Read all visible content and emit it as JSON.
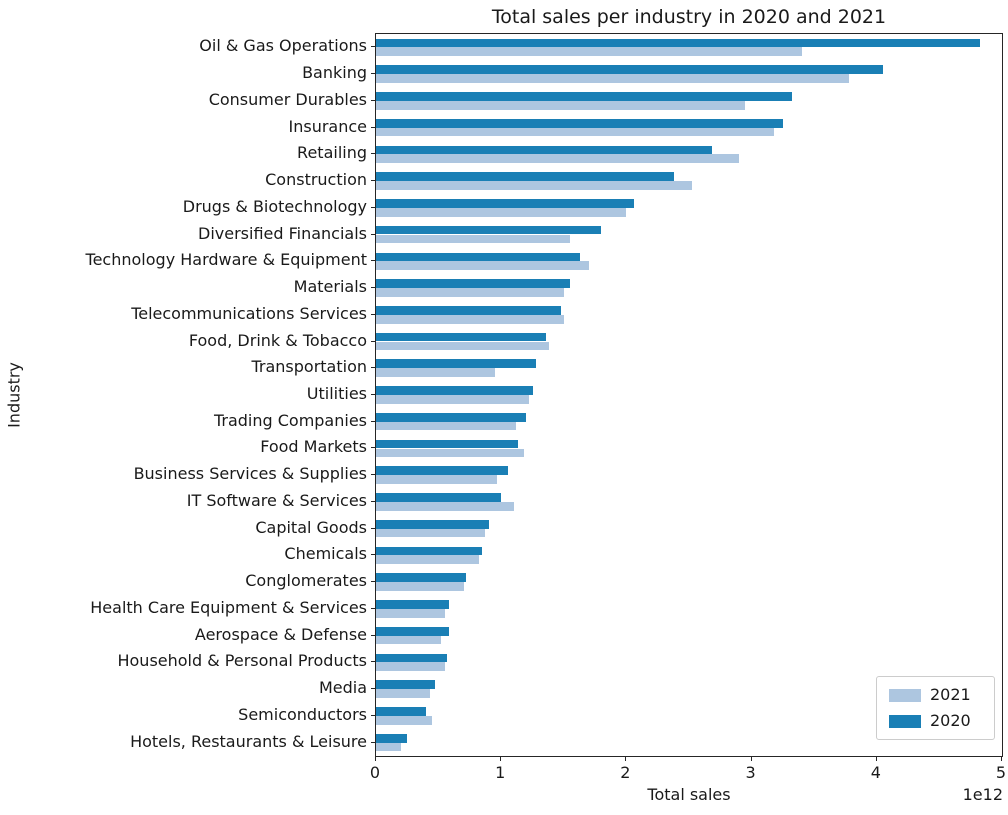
{
  "chart_data": {
    "type": "bar",
    "orientation": "horizontal",
    "title": "Total sales per industry in 2020 and 2021",
    "xlabel": "Total sales",
    "ylabel": "Industry",
    "x_offset_text": "1e12",
    "value_scale": 1000000000000,
    "xlim": [
      0,
      5
    ],
    "x_ticks": [
      0,
      1,
      2,
      3,
      4,
      5
    ],
    "grid": false,
    "legend_position": "lower right",
    "categories": [
      "Oil & Gas Operations",
      "Banking",
      "Consumer Durables",
      "Insurance",
      "Retailing",
      "Construction",
      "Drugs & Biotechnology",
      "Diversified Financials",
      "Technology Hardware & Equipment",
      "Materials",
      "Telecommunications Services",
      "Food, Drink & Tobacco",
      "Transportation",
      "Utilities",
      "Trading Companies",
      "Food Markets",
      "Business Services & Supplies",
      "IT Software & Services",
      "Capital Goods",
      "Chemicals",
      "Conglomerates",
      "Health Care Equipment & Services",
      "Aerospace & Defense",
      "Household & Personal Products",
      "Media",
      "Semiconductors",
      "Hotels, Restaurants & Leisure"
    ],
    "series": [
      {
        "name": "2021",
        "color": "#adc6e0",
        "values": [
          3.4,
          3.78,
          2.95,
          3.18,
          2.9,
          2.52,
          2.0,
          1.55,
          1.7,
          1.5,
          1.5,
          1.38,
          0.95,
          1.22,
          1.12,
          1.18,
          0.97,
          1.1,
          0.87,
          0.82,
          0.7,
          0.55,
          0.52,
          0.55,
          0.43,
          0.45,
          0.2
        ]
      },
      {
        "name": "2020",
        "color": "#1a7fb5",
        "values": [
          4.82,
          4.05,
          3.32,
          3.25,
          2.68,
          2.38,
          2.06,
          1.8,
          1.63,
          1.55,
          1.48,
          1.36,
          1.28,
          1.25,
          1.2,
          1.13,
          1.05,
          1.0,
          0.9,
          0.85,
          0.72,
          0.58,
          0.58,
          0.57,
          0.47,
          0.4,
          0.25
        ]
      }
    ]
  }
}
